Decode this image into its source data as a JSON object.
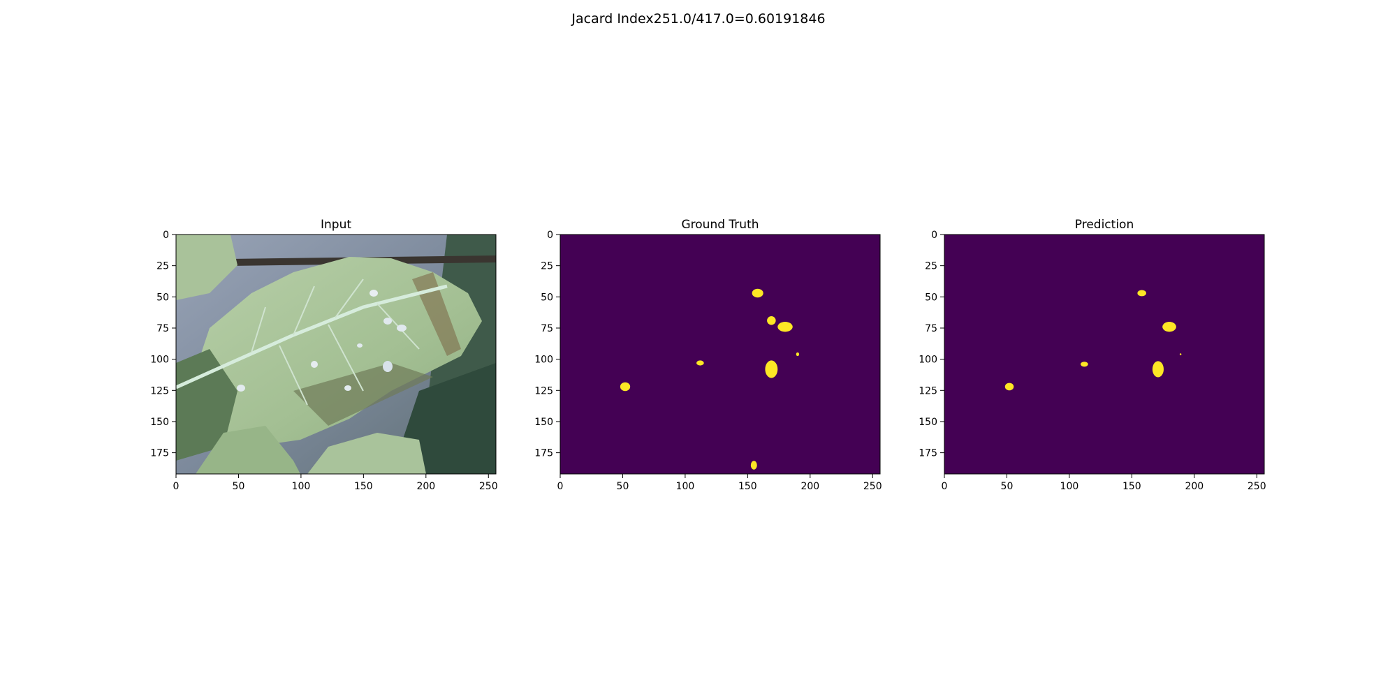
{
  "figure": {
    "suptitle": "Jacard Index251.0/417.0=0.60191846"
  },
  "colors": {
    "background": "#440154",
    "blob": "#fde725",
    "leaf": "#a8c49a",
    "leaf_vein": "#d8ecdc",
    "sky": "#8d98ab",
    "dark_foliage": "#2f4a3c"
  },
  "chart_data": [
    {
      "type": "heatmap",
      "title": "Input",
      "xlim": [
        0,
        256
      ],
      "ylim": [
        192,
        0
      ],
      "xticks": [
        "0",
        "50",
        "100",
        "150",
        "200",
        "250"
      ],
      "yticks": [
        "0",
        "25",
        "50",
        "75",
        "100",
        "125",
        "150",
        "175"
      ],
      "content": "photo"
    },
    {
      "type": "heatmap",
      "title": "Ground Truth",
      "xlim": [
        0,
        256
      ],
      "ylim": [
        192,
        0
      ],
      "xticks": [
        "0",
        "50",
        "100",
        "150",
        "200",
        "250"
      ],
      "yticks": [
        "0",
        "25",
        "50",
        "75",
        "100",
        "125",
        "150",
        "175"
      ],
      "content": "mask",
      "blobs": [
        {
          "x": 158,
          "y": 47,
          "rx": 4.5,
          "ry": 3.5
        },
        {
          "x": 169,
          "y": 69,
          "rx": 3.5,
          "ry": 3.5
        },
        {
          "x": 180,
          "y": 74,
          "rx": 6,
          "ry": 4
        },
        {
          "x": 190,
          "y": 96,
          "rx": 1.2,
          "ry": 1.5
        },
        {
          "x": 112,
          "y": 103,
          "rx": 3,
          "ry": 2
        },
        {
          "x": 169,
          "y": 108,
          "rx": 5,
          "ry": 7
        },
        {
          "x": 52,
          "y": 122,
          "rx": 4,
          "ry": 3.5
        },
        {
          "x": 155,
          "y": 185,
          "rx": 2.5,
          "ry": 3.5
        }
      ]
    },
    {
      "type": "heatmap",
      "title": "Prediction",
      "xlim": [
        0,
        256
      ],
      "ylim": [
        192,
        0
      ],
      "xticks": [
        "0",
        "50",
        "100",
        "150",
        "200",
        "250"
      ],
      "yticks": [
        "0",
        "25",
        "50",
        "75",
        "100",
        "125",
        "150",
        "175"
      ],
      "content": "mask",
      "blobs": [
        {
          "x": 158,
          "y": 47,
          "rx": 3.5,
          "ry": 2.5
        },
        {
          "x": 180,
          "y": 74,
          "rx": 5.5,
          "ry": 4
        },
        {
          "x": 189,
          "y": 96,
          "rx": 0.7,
          "ry": 0.7
        },
        {
          "x": 112,
          "y": 104,
          "rx": 3,
          "ry": 2
        },
        {
          "x": 171,
          "y": 108,
          "rx": 4.5,
          "ry": 6.5
        },
        {
          "x": 52,
          "y": 122,
          "rx": 3.5,
          "ry": 3
        }
      ]
    }
  ]
}
